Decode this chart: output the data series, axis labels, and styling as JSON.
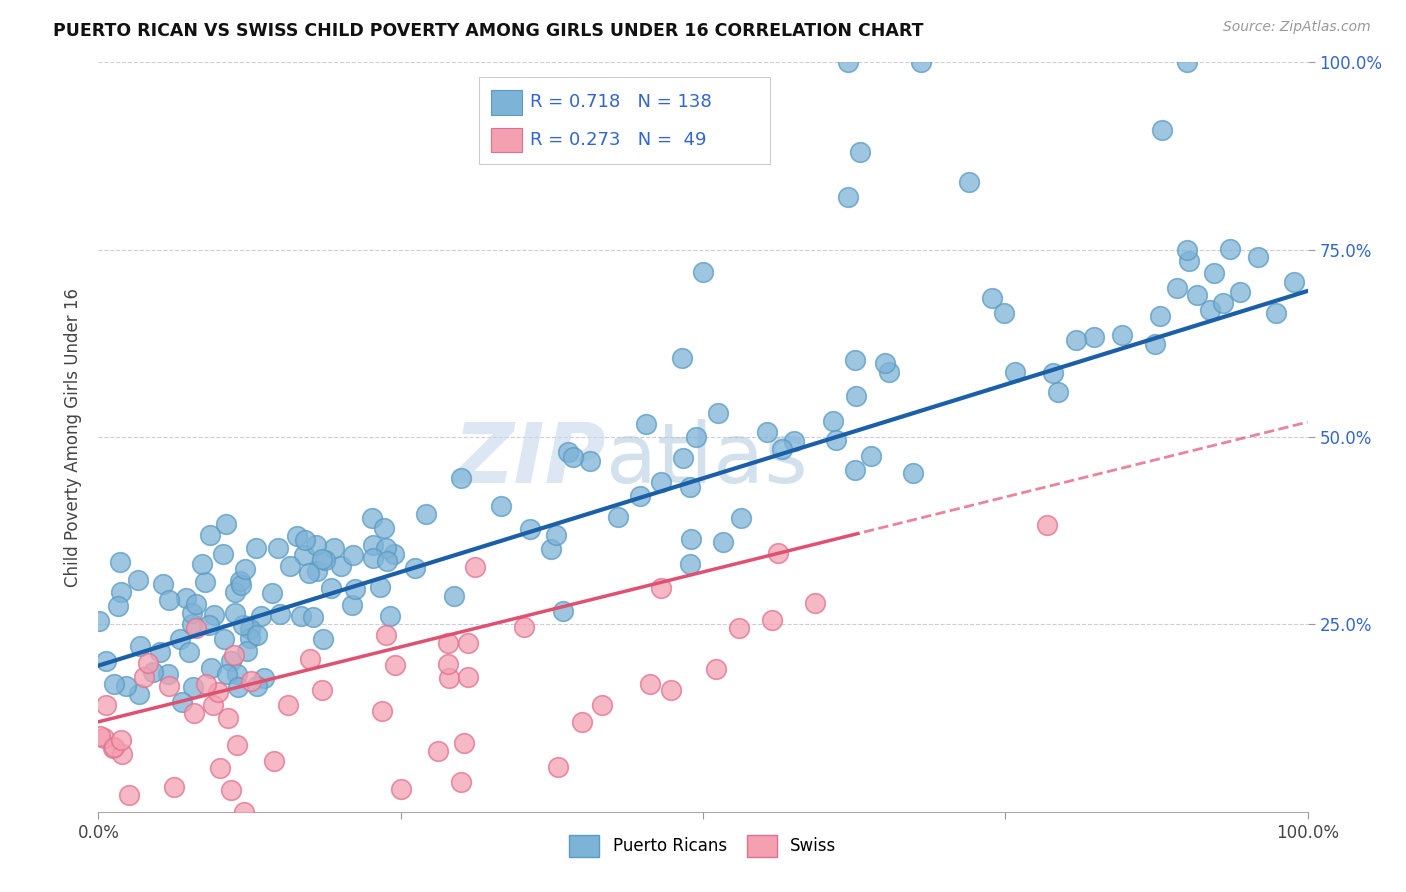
{
  "title": "PUERTO RICAN VS SWISS CHILD POVERTY AMONG GIRLS UNDER 16 CORRELATION CHART",
  "source": "Source: ZipAtlas.com",
  "ylabel": "Child Poverty Among Girls Under 16",
  "xlim": [
    0,
    1
  ],
  "ylim": [
    0,
    1
  ],
  "xticklabels": [
    "0.0%",
    "",
    "",
    "",
    "100.0%"
  ],
  "ytick_vals": [
    0.25,
    0.5,
    0.75,
    1.0
  ],
  "yticklabels_right": [
    "25.0%",
    "50.0%",
    "75.0%",
    "100.0%"
  ],
  "blue_color": "#7EB3D8",
  "blue_edge": "#5A9BC0",
  "pink_color": "#F4A0B0",
  "pink_edge": "#E07090",
  "line_blue": "#1A5FA8",
  "line_pink": "#E05070",
  "legend_text_color": "#3366CC",
  "watermark_zip": "ZIP",
  "watermark_atlas": "atlas",
  "R_blue": 0.718,
  "N_blue": 138,
  "R_pink": 0.273,
  "N_pink": 49,
  "background_color": "#FFFFFF",
  "grid_color": "#CCCCDD",
  "blue_line_start_x": 0.0,
  "blue_line_start_y": 0.195,
  "blue_line_end_x": 1.0,
  "blue_line_end_y": 0.695,
  "pink_line_start_x": 0.0,
  "pink_line_start_y": 0.12,
  "pink_line_end_x": 1.0,
  "pink_line_end_y": 0.52
}
